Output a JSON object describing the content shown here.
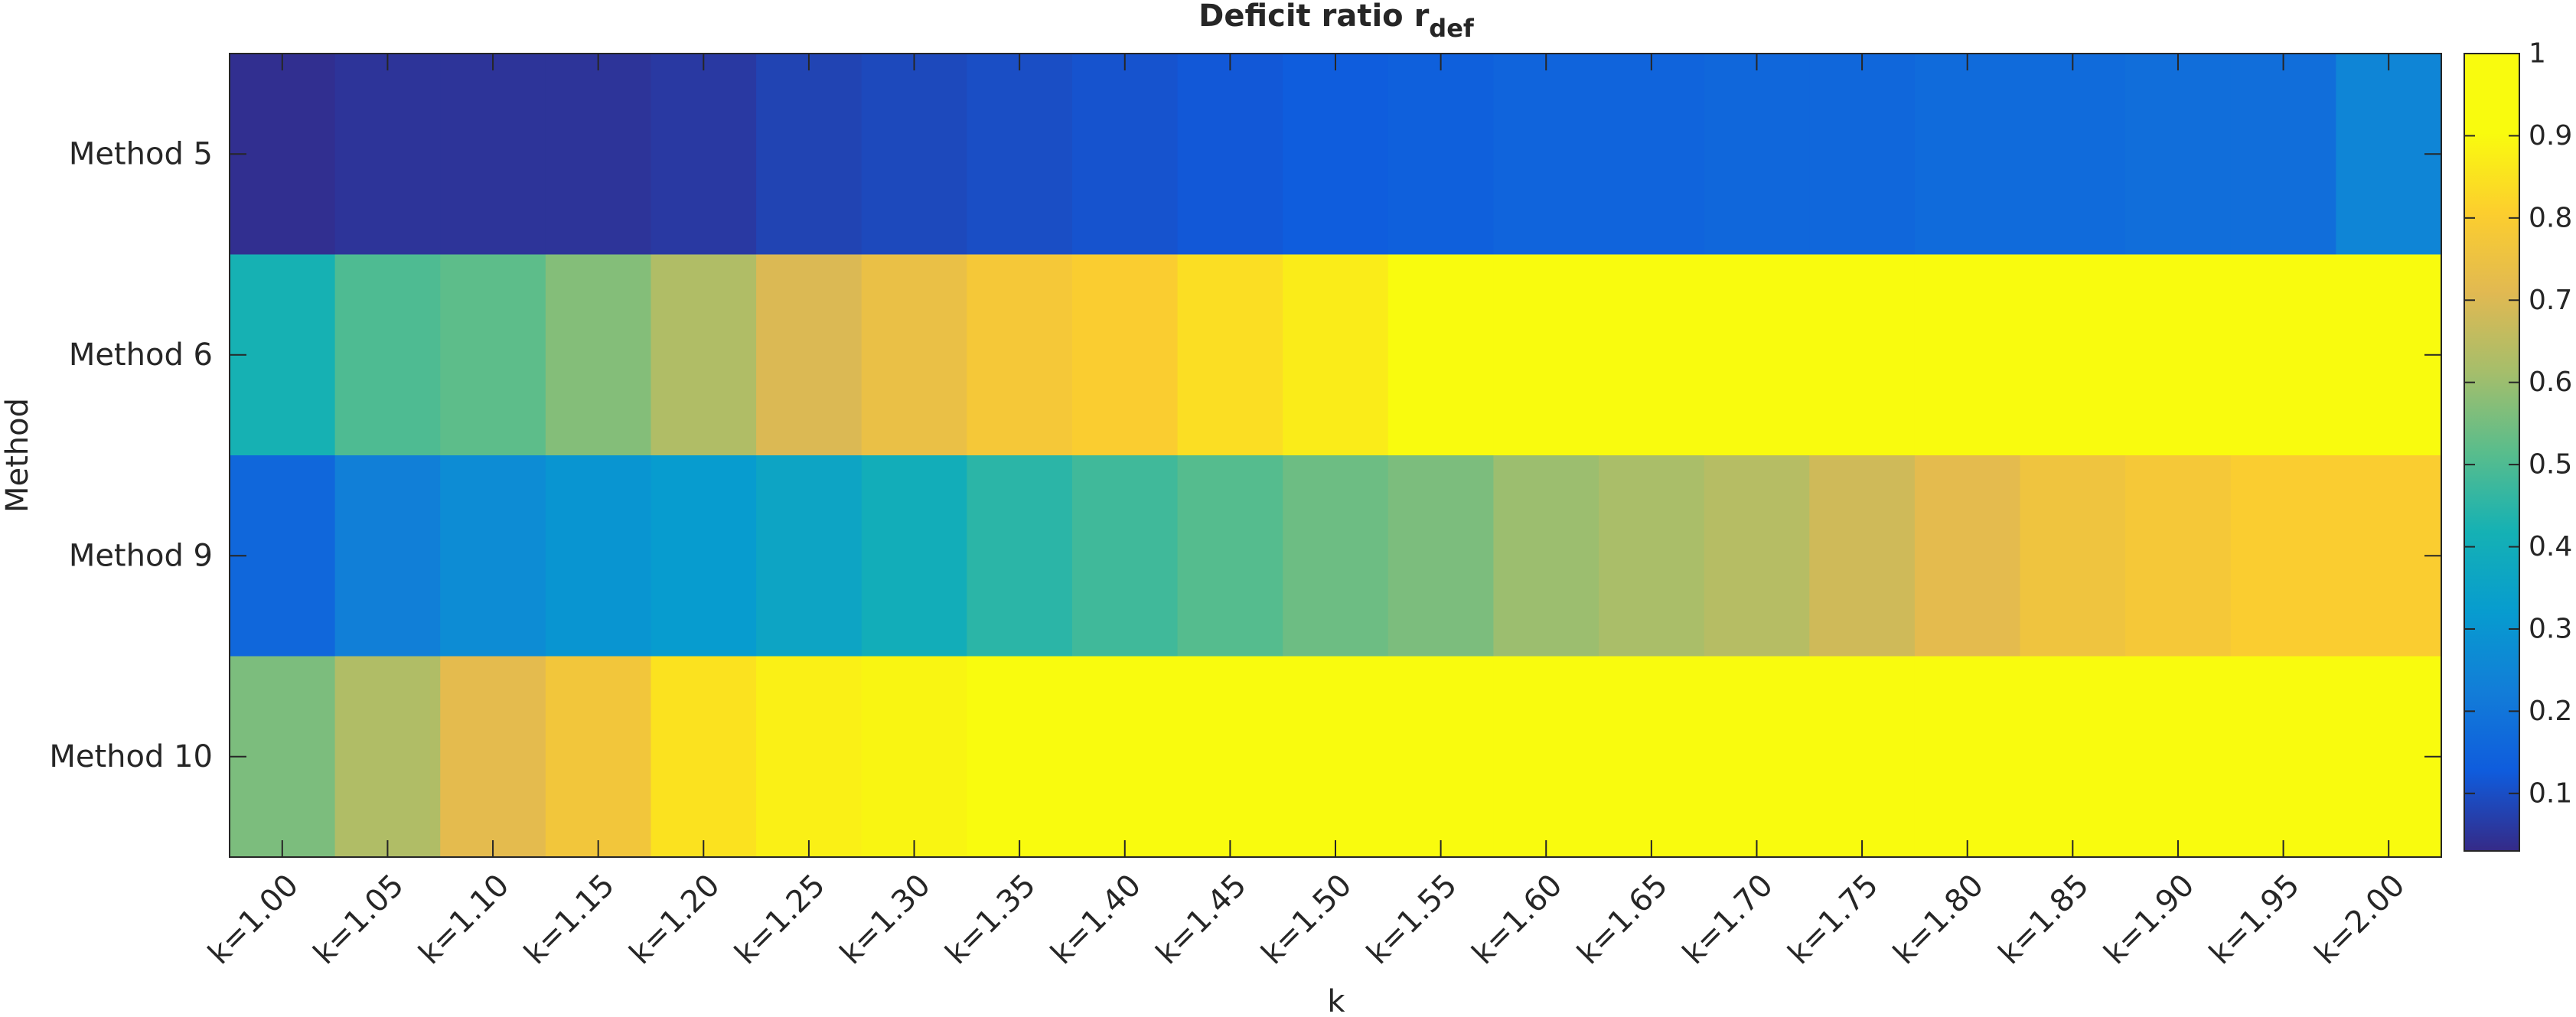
{
  "chart_data": {
    "type": "heatmap",
    "title": "Deficit ratio r",
    "title_subscript": "def",
    "xlabel": "k",
    "ylabel": "Method",
    "x_categories": [
      "k=1.00",
      "k=1.05",
      "k=1.10",
      "k=1.15",
      "k=1.20",
      "k=1.25",
      "k=1.30",
      "k=1.35",
      "k=1.40",
      "k=1.45",
      "k=1.50",
      "k=1.55",
      "k=1.60",
      "k=1.65",
      "k=1.70",
      "k=1.75",
      "k=1.80",
      "k=1.85",
      "k=1.90",
      "k=1.95",
      "k=2.00"
    ],
    "y_categories": [
      "Method 5",
      "Method 6",
      "Method 9",
      "Method 10"
    ],
    "values": [
      [
        0.04,
        0.05,
        0.05,
        0.05,
        0.06,
        0.08,
        0.09,
        0.1,
        0.11,
        0.12,
        0.13,
        0.14,
        0.15,
        0.15,
        0.16,
        0.16,
        0.17,
        0.17,
        0.18,
        0.18,
        0.25
      ],
      [
        0.42,
        0.5,
        0.52,
        0.57,
        0.63,
        0.7,
        0.74,
        0.78,
        0.8,
        0.84,
        0.87,
        0.91,
        0.91,
        0.91,
        0.92,
        0.93,
        0.94,
        0.94,
        0.95,
        0.96,
        1.0
      ],
      [
        0.16,
        0.23,
        0.27,
        0.3,
        0.32,
        0.36,
        0.4,
        0.45,
        0.48,
        0.51,
        0.54,
        0.56,
        0.6,
        0.62,
        0.64,
        0.68,
        0.72,
        0.76,
        0.78,
        0.8,
        0.8
      ],
      [
        0.56,
        0.63,
        0.72,
        0.77,
        0.85,
        0.88,
        0.89,
        0.91,
        0.93,
        0.94,
        0.95,
        0.96,
        0.97,
        0.98,
        0.98,
        0.99,
        0.99,
        0.99,
        1.0,
        1.0,
        1.0
      ]
    ],
    "colormap": "parula",
    "colorbar": {
      "range": [
        0.03,
        1.0
      ],
      "ticks": [
        0.1,
        0.2,
        0.3,
        0.4,
        0.5,
        0.6,
        0.7,
        0.8,
        0.9,
        1
      ],
      "tick_labels": [
        "0.1",
        "0.2",
        "0.3",
        "0.4",
        "0.5",
        "0.6",
        "0.7",
        "0.8",
        "0.9",
        "1"
      ],
      "placement": "right"
    },
    "grid": false
  }
}
